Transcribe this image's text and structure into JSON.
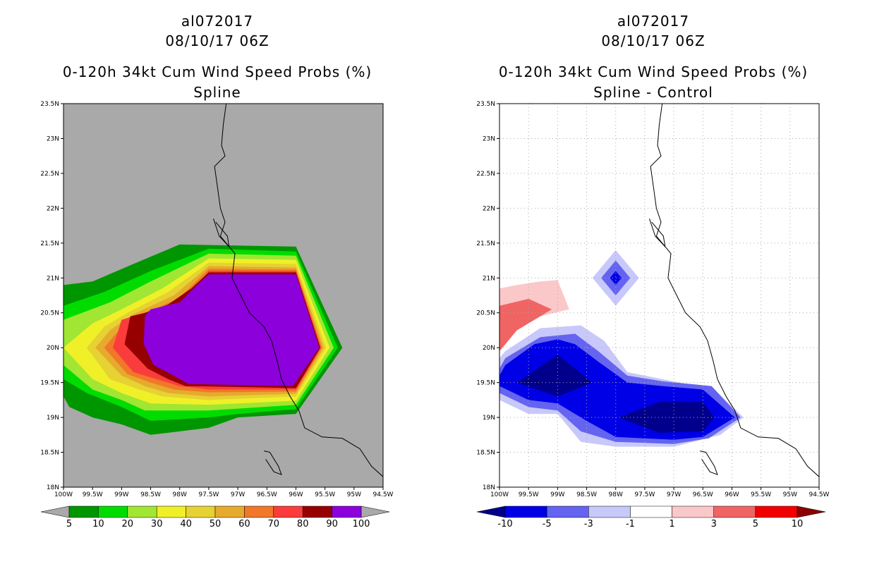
{
  "left": {
    "title_line1": "al072017",
    "title_line2": "08/10/17 06Z",
    "title_line3": "0-120h 34kt Cum Wind Speed Probs (%)",
    "title_line4": "Spline"
  },
  "right": {
    "title_line1": "al072017",
    "title_line2": "08/10/17 06Z",
    "title_line3": "0-120h 34kt Cum Wind Speed Probs (%)",
    "title_line4": "Spline - Control"
  },
  "chart_data": [
    {
      "type": "heatmap",
      "title": "0-120h 34kt Cum Wind Speed Probs (%) - Spline",
      "x_ticks": [
        "100W",
        "99.5W",
        "99W",
        "98.5W",
        "98W",
        "97.5W",
        "97W",
        "96.5W",
        "96W",
        "95.5W",
        "95W",
        "94.5W"
      ],
      "y_ticks": [
        "18N",
        "18.5N",
        "19N",
        "19.5N",
        "20N",
        "20.5N",
        "21N",
        "21.5N",
        "22N",
        "22.5N",
        "23N",
        "23.5N"
      ],
      "xlim": [
        -100,
        -94.5
      ],
      "ylim": [
        18,
        23.5
      ],
      "background": "#a9a9a9",
      "colorbar": {
        "labels": [
          "5",
          "10",
          "20",
          "30",
          "40",
          "50",
          "60",
          "70",
          "80",
          "90",
          "100"
        ],
        "colors": [
          "#009600",
          "#00dc00",
          "#a0e632",
          "#f0f028",
          "#e6d232",
          "#e6aa2d",
          "#f07828",
          "#fa3c3c",
          "#960000",
          "#8c00dc"
        ]
      },
      "levels": [
        {
          "min_pct": 5,
          "color": "#009600",
          "poly": [
            [
              -100,
              19.3
            ],
            [
              -99.9,
              19.15
            ],
            [
              -99.5,
              19.0
            ],
            [
              -99,
              18.9
            ],
            [
              -98.5,
              18.75
            ],
            [
              -97.5,
              18.85
            ],
            [
              -97,
              19.0
            ],
            [
              -96,
              19.05
            ],
            [
              -95.2,
              20.0
            ],
            [
              -96,
              21.45
            ],
            [
              -98,
              21.48
            ],
            [
              -98.8,
              21.2
            ],
            [
              -99.5,
              20.95
            ],
            [
              -100,
              20.9
            ]
          ]
        },
        {
          "min_pct": 10,
          "color": "#00dc00",
          "poly": [
            [
              -100,
              19.55
            ],
            [
              -99.6,
              19.35
            ],
            [
              -99,
              19.15
            ],
            [
              -98.5,
              18.95
            ],
            [
              -97.5,
              19.0
            ],
            [
              -97,
              19.05
            ],
            [
              -96,
              19.12
            ],
            [
              -95.28,
              20.0
            ],
            [
              -96,
              21.38
            ],
            [
              -97.5,
              21.42
            ],
            [
              -98.5,
              21.1
            ],
            [
              -99.3,
              20.8
            ],
            [
              -100,
              20.6
            ]
          ]
        },
        {
          "min_pct": 20,
          "color": "#a0e632",
          "poly": [
            [
              -100,
              19.75
            ],
            [
              -99.5,
              19.4
            ],
            [
              -99,
              19.25
            ],
            [
              -98.6,
              19.1
            ],
            [
              -97.5,
              19.1
            ],
            [
              -96,
              19.18
            ],
            [
              -95.35,
              20.0
            ],
            [
              -96,
              21.32
            ],
            [
              -97.5,
              21.35
            ],
            [
              -98.5,
              20.95
            ],
            [
              -99.2,
              20.65
            ],
            [
              -100,
              20.4
            ]
          ]
        },
        {
          "min_pct": 30,
          "color": "#f0f028",
          "poly": [
            [
              -100,
              20.0
            ],
            [
              -99.5,
              19.55
            ],
            [
              -99,
              19.35
            ],
            [
              -98.5,
              19.2
            ],
            [
              -97.5,
              19.18
            ],
            [
              -96,
              19.24
            ],
            [
              -95.42,
              20.0
            ],
            [
              -96,
              21.26
            ],
            [
              -97.5,
              21.28
            ],
            [
              -98.3,
              20.85
            ],
            [
              -99,
              20.55
            ],
            [
              -99.5,
              20.35
            ]
          ]
        },
        {
          "min_pct": 40,
          "color": "#e6d232",
          "poly": [
            [
              -99.6,
              20.0
            ],
            [
              -99.2,
              19.55
            ],
            [
              -98.7,
              19.4
            ],
            [
              -98.3,
              19.3
            ],
            [
              -97.5,
              19.25
            ],
            [
              -96,
              19.3
            ],
            [
              -95.48,
              20.0
            ],
            [
              -96,
              21.2
            ],
            [
              -97.5,
              21.22
            ],
            [
              -98.2,
              20.8
            ],
            [
              -98.9,
              20.5
            ],
            [
              -99.3,
              20.3
            ]
          ]
        },
        {
          "min_pct": 50,
          "color": "#e6aa2d",
          "poly": [
            [
              -99.45,
              20.0
            ],
            [
              -99.0,
              19.6
            ],
            [
              -98.6,
              19.45
            ],
            [
              -98.2,
              19.35
            ],
            [
              -97.5,
              19.3
            ],
            [
              -96,
              19.34
            ],
            [
              -95.52,
              20.0
            ],
            [
              -96,
              21.15
            ],
            [
              -97.5,
              21.17
            ],
            [
              -98.1,
              20.75
            ],
            [
              -98.8,
              20.48
            ],
            [
              -99.2,
              20.25
            ]
          ]
        },
        {
          "min_pct": 60,
          "color": "#f07828",
          "poly": [
            [
              -99.3,
              20.0
            ],
            [
              -98.9,
              19.62
            ],
            [
              -98.5,
              19.5
            ],
            [
              -98.1,
              19.4
            ],
            [
              -97.5,
              19.36
            ],
            [
              -96,
              19.37
            ],
            [
              -95.55,
              20.0
            ],
            [
              -96,
              21.12
            ],
            [
              -97.5,
              21.13
            ],
            [
              -98.0,
              20.72
            ],
            [
              -98.7,
              20.45
            ],
            [
              -99.1,
              20.2
            ]
          ]
        },
        {
          "min_pct": 70,
          "color": "#fa3c3c",
          "poly": [
            [
              -99.15,
              20.0
            ],
            [
              -98.8,
              19.65
            ],
            [
              -98.4,
              19.55
            ],
            [
              -98.0,
              19.45
            ],
            [
              -97.5,
              19.4
            ],
            [
              -96,
              19.4
            ],
            [
              -95.57,
              20.0
            ],
            [
              -96,
              21.1
            ],
            [
              -97.5,
              21.1
            ],
            [
              -97.9,
              20.7
            ],
            [
              -98.6,
              20.5
            ],
            [
              -99.0,
              20.4
            ]
          ]
        },
        {
          "min_pct": 80,
          "color": "#960000",
          "poly": [
            [
              -98.95,
              20.05
            ],
            [
              -98.55,
              19.7
            ],
            [
              -98.2,
              19.55
            ],
            [
              -97.9,
              19.45
            ],
            [
              -96,
              19.42
            ],
            [
              -95.58,
              20.0
            ],
            [
              -96,
              21.08
            ],
            [
              -97.5,
              21.08
            ],
            [
              -97.8,
              20.85
            ],
            [
              -98.2,
              20.62
            ],
            [
              -98.6,
              20.5
            ],
            [
              -98.85,
              20.45
            ]
          ]
        },
        {
          "min_pct": 90,
          "color": "#8c00dc",
          "poly": [
            [
              -98.62,
              20.05
            ],
            [
              -98.45,
              19.75
            ],
            [
              -98.1,
              19.6
            ],
            [
              -97.85,
              19.48
            ],
            [
              -96.05,
              19.45
            ],
            [
              -95.6,
              20.0
            ],
            [
              -96.0,
              21.05
            ],
            [
              -97.5,
              21.05
            ],
            [
              -97.7,
              20.9
            ],
            [
              -98.0,
              20.65
            ],
            [
              -98.5,
              20.55
            ],
            [
              -98.6,
              20.45
            ]
          ]
        }
      ]
    },
    {
      "type": "heatmap",
      "title": "0-120h 34kt Cum Wind Speed Probs (%) - Spline - Control",
      "x_ticks": [
        "100W",
        "99.5W",
        "99W",
        "98.5W",
        "98W",
        "97.5W",
        "97W",
        "96.5W",
        "96W",
        "95.5W",
        "95W",
        "94.5W"
      ],
      "y_ticks": [
        "18N",
        "18.5N",
        "19N",
        "19.5N",
        "20N",
        "20.5N",
        "21N",
        "21.5N",
        "22N",
        "22.5N",
        "23N",
        "23.5N"
      ],
      "xlim": [
        -100,
        -94.5
      ],
      "ylim": [
        18,
        23.5
      ],
      "background": "#ffffff",
      "gridlines": "dotted",
      "colorbar": {
        "labels": [
          "-10",
          "-5",
          "-3",
          "-1",
          "1",
          "3",
          "5",
          "10"
        ],
        "colors": [
          "#00008c",
          "#0000e6",
          "#6464f0",
          "#c8c8fa",
          "#ffffff",
          "#fac8c8",
          "#f06464",
          "#f00000",
          "#8c0000"
        ]
      },
      "regions": [
        {
          "level": "1 to 3",
          "color": "#fac8c8",
          "poly": [
            [
              -100,
              20.85
            ],
            [
              -99.7,
              20.9
            ],
            [
              -99.3,
              20.95
            ],
            [
              -99,
              20.97
            ],
            [
              -98.8,
              20.55
            ],
            [
              -99.3,
              20.45
            ],
            [
              -99.7,
              20.25
            ],
            [
              -100,
              20.15
            ]
          ]
        },
        {
          "level": "3 to 5",
          "color": "#f06464",
          "poly": [
            [
              -100,
              20.6
            ],
            [
              -99.5,
              20.7
            ],
            [
              -99.1,
              20.55
            ],
            [
              -99.3,
              20.45
            ],
            [
              -99.7,
              20.25
            ],
            [
              -100,
              19.95
            ]
          ]
        },
        {
          "level": "-1 to -3",
          "color": "#c8c8fa",
          "poly": [
            [
              -100,
              19.25
            ],
            [
              -99.5,
              19.05
            ],
            [
              -99,
              19.05
            ],
            [
              -98.6,
              18.65
            ],
            [
              -98,
              18.58
            ],
            [
              -97,
              18.58
            ],
            [
              -96.2,
              18.75
            ],
            [
              -95.8,
              19.0
            ],
            [
              -96.3,
              19.4
            ],
            [
              -97.2,
              19.55
            ],
            [
              -97.8,
              19.65
            ],
            [
              -98.2,
              20.1
            ],
            [
              -98.6,
              20.32
            ],
            [
              -99.3,
              20.28
            ],
            [
              -99.9,
              19.95
            ],
            [
              -100,
              19.85
            ]
          ]
        },
        {
          "level": "-3 to -5",
          "color": "#6464f0",
          "poly": [
            [
              -100,
              19.35
            ],
            [
              -99.5,
              19.15
            ],
            [
              -99,
              19.1
            ],
            [
              -98.6,
              18.8
            ],
            [
              -98,
              18.65
            ],
            [
              -97,
              18.62
            ],
            [
              -96.4,
              18.7
            ],
            [
              -95.85,
              19.0
            ],
            [
              -96.35,
              19.45
            ],
            [
              -97.2,
              19.52
            ],
            [
              -97.8,
              19.6
            ],
            [
              -98.3,
              19.95
            ],
            [
              -98.7,
              20.2
            ],
            [
              -99.3,
              20.15
            ],
            [
              -99.9,
              19.85
            ],
            [
              -100,
              19.7
            ]
          ]
        },
        {
          "level": "-5 to -10",
          "color": "#0000e6",
          "poly": [
            [
              -100,
              19.45
            ],
            [
              -99.5,
              19.25
            ],
            [
              -99,
              19.2
            ],
            [
              -98.5,
              18.95
            ],
            [
              -98,
              18.72
            ],
            [
              -97,
              18.68
            ],
            [
              -96.5,
              18.72
            ],
            [
              -95.95,
              19.0
            ],
            [
              -96.5,
              19.4
            ],
            [
              -97.2,
              19.45
            ],
            [
              -97.8,
              19.5
            ],
            [
              -98.3,
              19.8
            ],
            [
              -98.7,
              20.05
            ],
            [
              -99,
              20.12
            ],
            [
              -99.4,
              20.05
            ],
            [
              -99.9,
              19.75
            ],
            [
              -100,
              19.6
            ]
          ]
        },
        {
          "level": "< -10",
          "color": "#00008c",
          "poly": [
            [
              -99.7,
              19.5
            ],
            [
              -99,
              19.3
            ],
            [
              -98.4,
              19.5
            ],
            [
              -99,
              19.9
            ]
          ]
        },
        {
          "level": "< -10",
          "color": "#00008c",
          "poly": [
            [
              -97.95,
              19.0
            ],
            [
              -97.25,
              19.22
            ],
            [
              -96.5,
              19.22
            ],
            [
              -96.3,
              19.0
            ],
            [
              -96.5,
              18.8
            ],
            [
              -97.25,
              18.78
            ]
          ]
        },
        {
          "level": "-1 to -3",
          "color": "#c8c8fa",
          "poly": [
            [
              -98,
              21.4
            ],
            [
              -97.6,
              21.0
            ],
            [
              -98,
              20.6
            ],
            [
              -98.4,
              21.0
            ]
          ]
        },
        {
          "level": "-3 to -5",
          "color": "#6464f0",
          "poly": [
            [
              -98,
              21.25
            ],
            [
              -97.75,
              21.0
            ],
            [
              -98,
              20.75
            ],
            [
              -98.25,
              21.0
            ]
          ]
        },
        {
          "level": "-5 to -10",
          "color": "#0000e6",
          "poly": [
            [
              -98,
              21.1
            ],
            [
              -97.9,
              21.0
            ],
            [
              -98,
              20.9
            ],
            [
              -98.1,
              21.0
            ]
          ]
        }
      ]
    }
  ]
}
